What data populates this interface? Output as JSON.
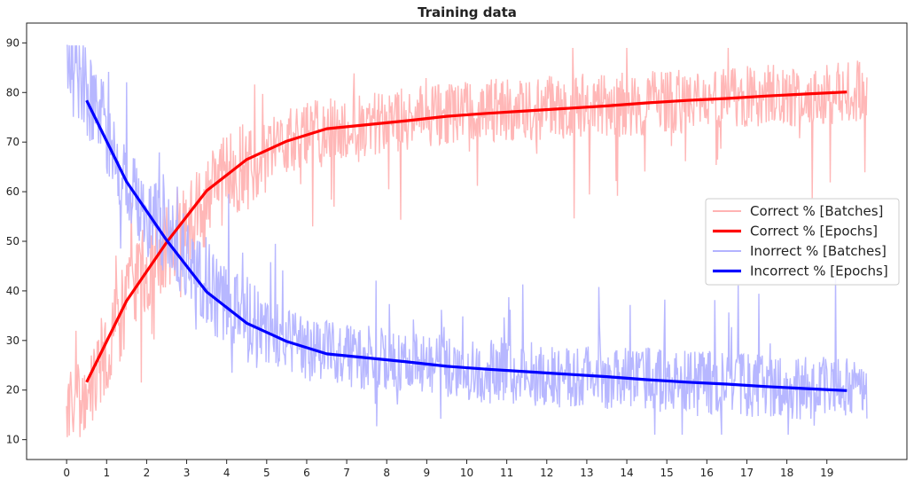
{
  "chart_data": {
    "type": "line",
    "title": "Training data",
    "xlabel": "",
    "ylabel": "",
    "xlim": [
      -1,
      21
    ],
    "ylim": [
      6,
      94
    ],
    "xticks": [
      0,
      1,
      2,
      3,
      4,
      5,
      6,
      7,
      8,
      9,
      10,
      11,
      12,
      13,
      14,
      15,
      16,
      17,
      18,
      19
    ],
    "yticks": [
      10,
      20,
      30,
      40,
      50,
      60,
      70,
      80,
      90
    ],
    "grid": false,
    "legend_position": "center-right",
    "colors": {
      "correct_batches": "#ffb3b3",
      "correct_epochs": "#ff0000",
      "incorrect_batches": "#b3b3ff",
      "incorrect_epochs": "#0000ff"
    },
    "batch_noise": {
      "x_start": 0.0,
      "x_end": 20.0,
      "samples_per_epoch": 60,
      "correct_envelope": [
        [
          0.0,
          14
        ],
        [
          0.5,
          20
        ],
        [
          1.0,
          28
        ],
        [
          1.5,
          38
        ],
        [
          2.0,
          45
        ],
        [
          3.0,
          53
        ],
        [
          3.5,
          58
        ],
        [
          4.0,
          63
        ],
        [
          4.5,
          66
        ],
        [
          5.0,
          68
        ],
        [
          6.0,
          72
        ],
        [
          7.0,
          73
        ],
        [
          8.0,
          74
        ],
        [
          10.0,
          76
        ],
        [
          12.0,
          77
        ],
        [
          15.0,
          78
        ],
        [
          17.0,
          79
        ],
        [
          20.0,
          80
        ]
      ],
      "incorrect_envelope": [
        [
          0.0,
          86
        ],
        [
          0.5,
          80
        ],
        [
          1.0,
          72
        ],
        [
          1.5,
          62
        ],
        [
          2.0,
          55
        ],
        [
          3.0,
          47
        ],
        [
          3.5,
          42
        ],
        [
          4.0,
          37
        ],
        [
          4.5,
          34
        ],
        [
          5.0,
          32
        ],
        [
          6.0,
          28
        ],
        [
          7.0,
          27
        ],
        [
          8.0,
          26
        ],
        [
          10.0,
          24
        ],
        [
          12.0,
          23
        ],
        [
          15.0,
          22
        ],
        [
          17.0,
          21
        ],
        [
          20.0,
          20
        ]
      ]
    },
    "series": [
      {
        "name": "Correct % [Batches]",
        "key": "correct_batches",
        "kind": "batches"
      },
      {
        "name": "Correct % [Epochs]",
        "key": "correct_epochs",
        "kind": "epochs",
        "x": [
          0.5,
          1.5,
          2.5,
          3.5,
          4.5,
          5.5,
          6.5,
          7.5,
          8.5,
          9.5,
          10.5,
          11.5,
          12.5,
          13.5,
          14.5,
          15.5,
          16.5,
          17.5,
          18.5,
          19.5
        ],
        "values": [
          21.6,
          38.0,
          49.8,
          60.2,
          66.5,
          70.2,
          72.7,
          73.5,
          74.3,
          75.2,
          75.8,
          76.3,
          76.8,
          77.3,
          77.9,
          78.4,
          78.8,
          79.3,
          79.7,
          80.1
        ]
      },
      {
        "name": "Inorrect % [Batches]",
        "key": "incorrect_batches",
        "kind": "batches"
      },
      {
        "name": "Incorrect % [Epochs]",
        "key": "incorrect_epochs",
        "kind": "epochs",
        "x": [
          0.5,
          1.5,
          2.5,
          3.5,
          4.5,
          5.5,
          6.5,
          7.5,
          8.5,
          9.5,
          10.5,
          11.5,
          12.5,
          13.5,
          14.5,
          15.5,
          16.5,
          17.5,
          18.5,
          19.5
        ],
        "values": [
          78.4,
          62.0,
          50.2,
          39.8,
          33.5,
          29.8,
          27.3,
          26.5,
          25.7,
          24.8,
          24.2,
          23.7,
          23.2,
          22.7,
          22.1,
          21.6,
          21.2,
          20.7,
          20.3,
          19.9
        ]
      }
    ]
  }
}
